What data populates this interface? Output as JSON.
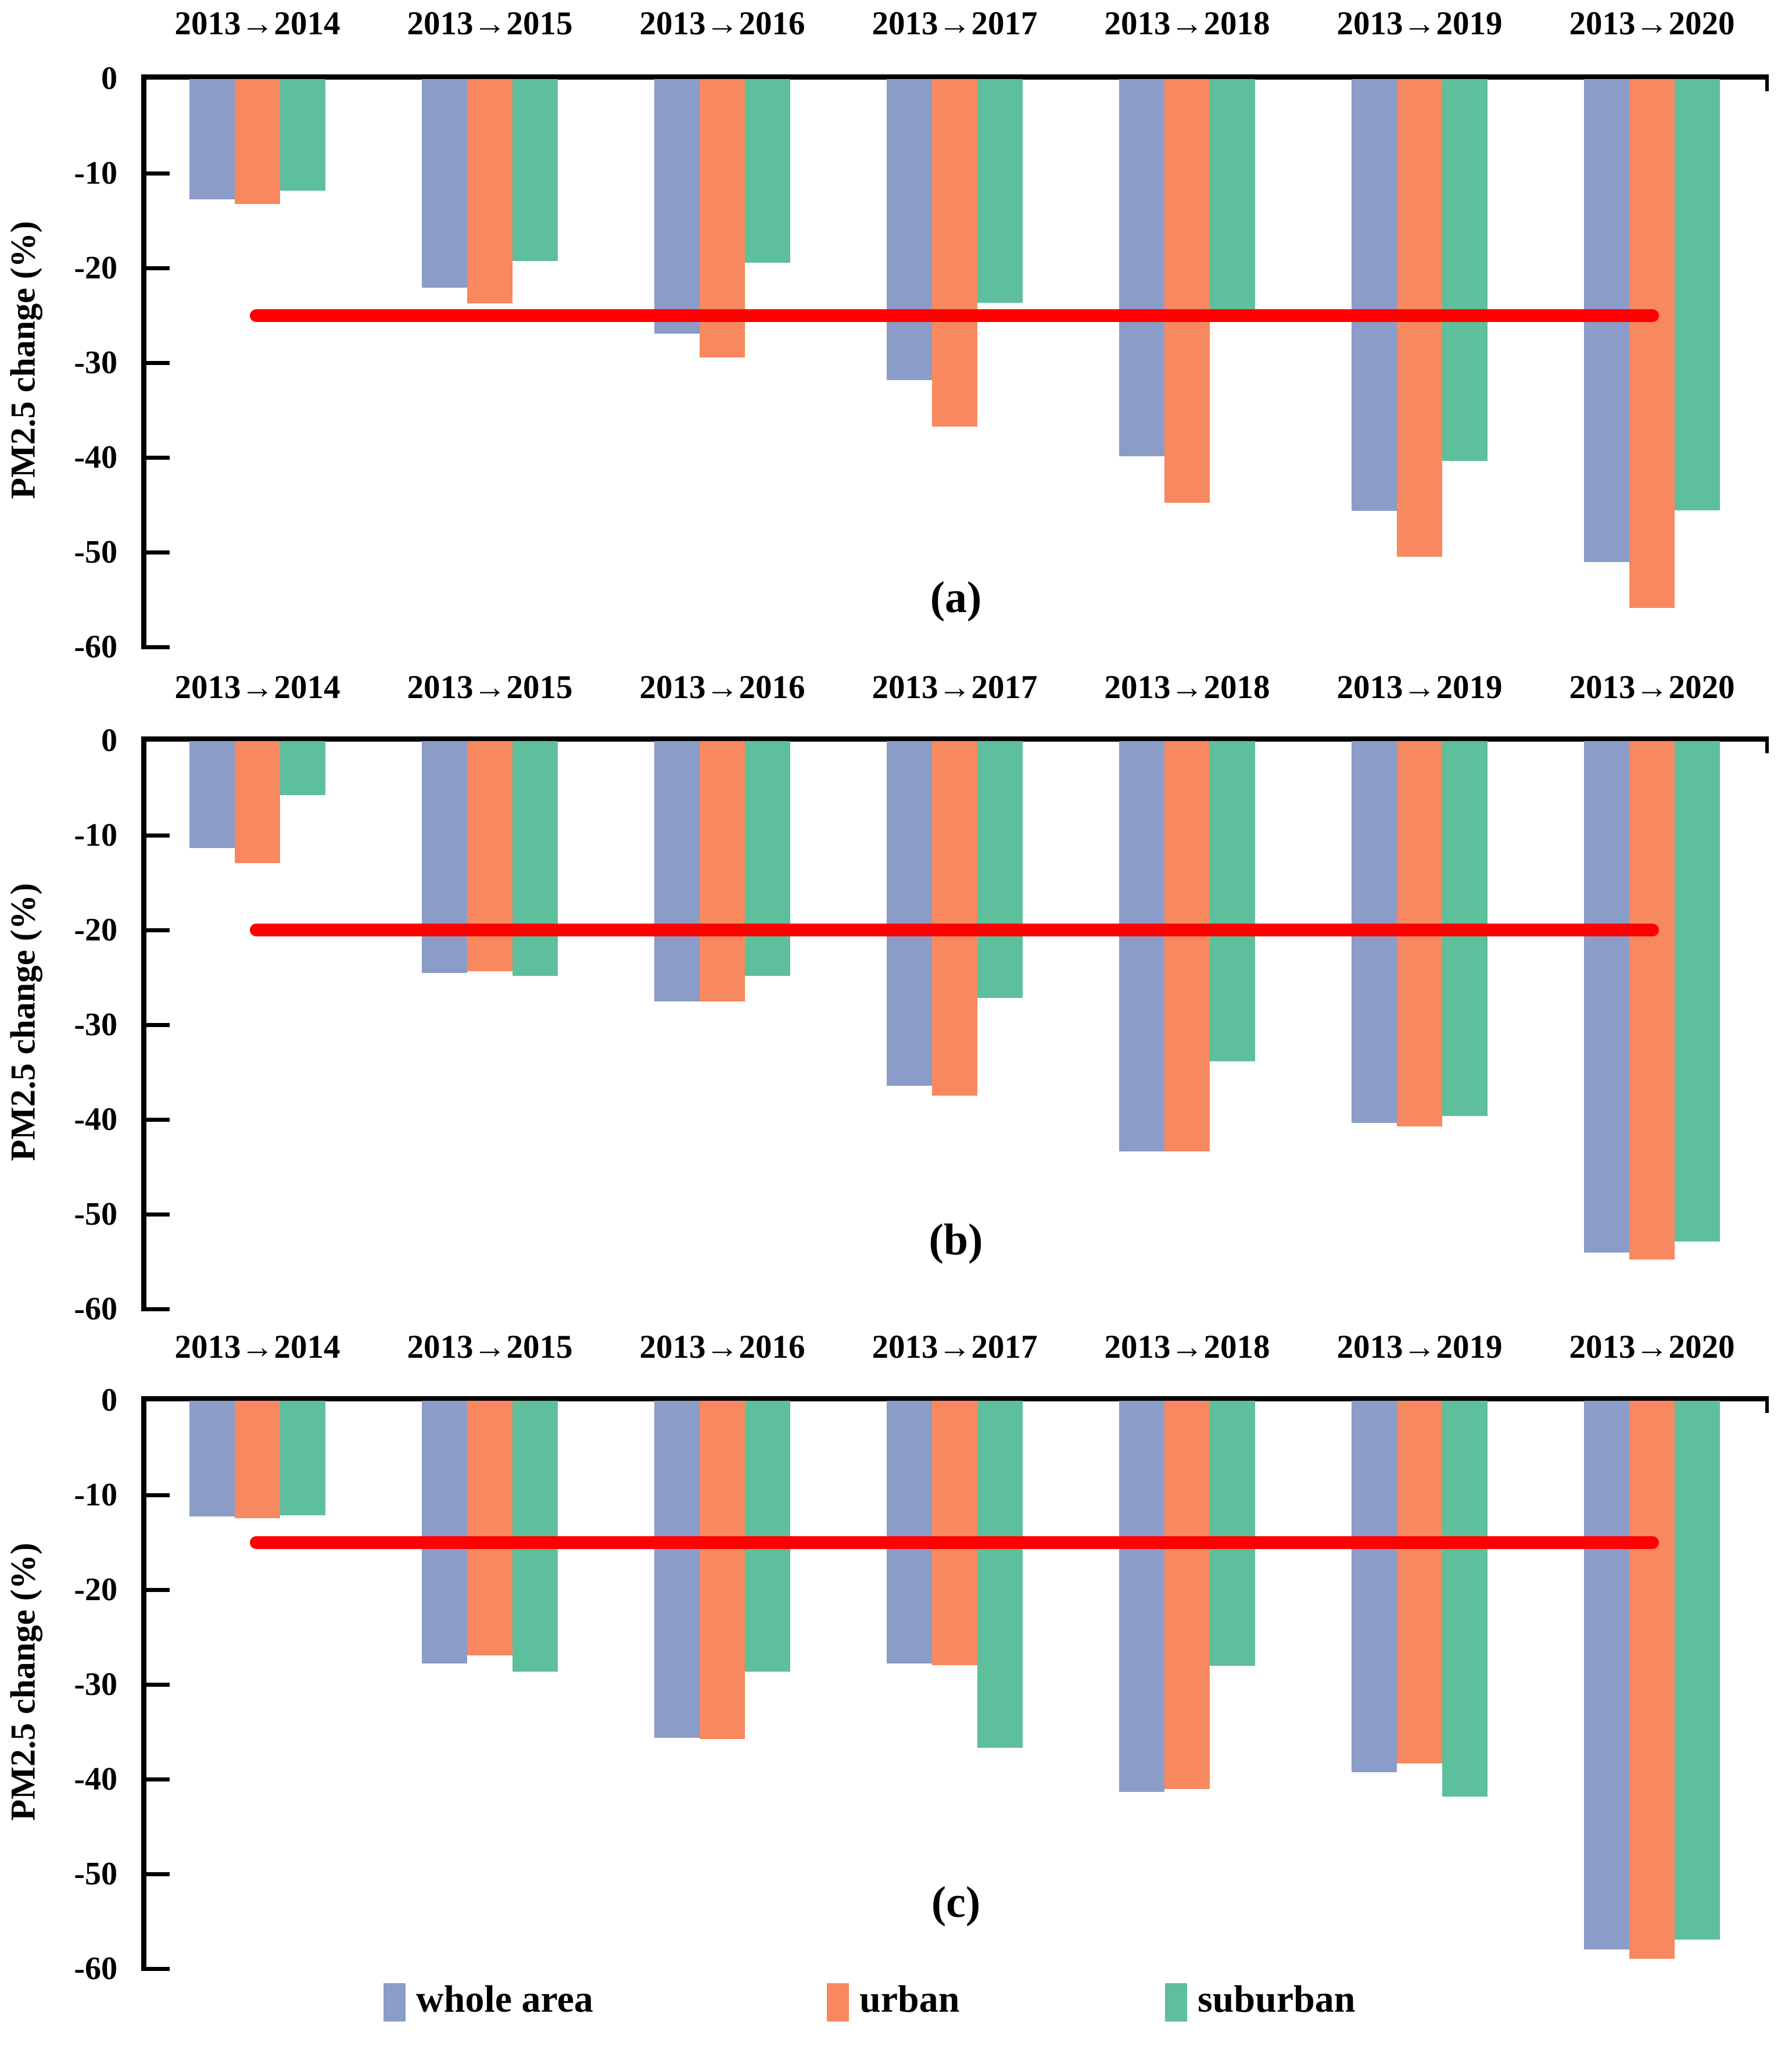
{
  "figure": {
    "ylabel": "PM2.5 change (%)",
    "panel_letters": [
      "(a)",
      "(b)",
      "(c)"
    ]
  },
  "legend": {
    "items": [
      {
        "label": "whole area",
        "color": "#8B9CC8"
      },
      {
        "label": "urban",
        "color": "#F8885F"
      },
      {
        "label": "suburban",
        "color": "#5DBF9B"
      }
    ]
  },
  "colors": {
    "whole_area": "#8B9CC8",
    "urban": "#F8885F",
    "suburban": "#5DBF9B",
    "reference_line": "#FF0000",
    "axis": "#000000"
  },
  "chart_data": [
    {
      "type": "bar",
      "panel": "(a)",
      "title": "",
      "xlabel": "",
      "ylabel": "PM2.5 change (%)",
      "ylim": [
        -60,
        0
      ],
      "yticks": [
        "0",
        "-10",
        "-20",
        "-30",
        "-40",
        "-50",
        "-60"
      ],
      "ytick_values": [
        0,
        -10,
        -20,
        -30,
        -40,
        -50,
        -60
      ],
      "grid": false,
      "reference_line": -25,
      "categories": [
        "2013→2014",
        "2013→2015",
        "2013→2016",
        "2013→2017",
        "2013→2018",
        "2013→2019",
        "2013→2020"
      ],
      "series": [
        {
          "name": "whole area",
          "values": [
            -12.7,
            -22.0,
            -26.9,
            -31.8,
            -39.8,
            -45.6,
            -51.0
          ]
        },
        {
          "name": "urban",
          "values": [
            -13.2,
            -23.7,
            -29.4,
            -36.7,
            -44.7,
            -50.4,
            -55.8
          ]
        },
        {
          "name": "suburban",
          "values": [
            -11.8,
            -19.2,
            -19.4,
            -23.6,
            -24.4,
            -40.3,
            -45.5
          ]
        }
      ]
    },
    {
      "type": "bar",
      "panel": "(b)",
      "title": "",
      "xlabel": "",
      "ylabel": "PM2.5 change (%)",
      "ylim": [
        -60,
        0
      ],
      "yticks": [
        "0",
        "-10",
        "-20",
        "-30",
        "-40",
        "-50",
        "-60"
      ],
      "ytick_values": [
        0,
        -10,
        -20,
        -30,
        -40,
        -50,
        -60
      ],
      "grid": false,
      "reference_line": -20,
      "categories": [
        "2013→2014",
        "2013→2015",
        "2013→2016",
        "2013→2017",
        "2013→2018",
        "2013→2019",
        "2013→2020"
      ],
      "series": [
        {
          "name": "whole area",
          "values": [
            -11.3,
            -24.5,
            -27.5,
            -36.4,
            -43.3,
            -40.3,
            -54.0
          ]
        },
        {
          "name": "urban",
          "values": [
            -12.9,
            -24.3,
            -27.5,
            -37.4,
            -43.3,
            -40.7,
            -54.7
          ]
        },
        {
          "name": "suburban",
          "values": [
            -5.7,
            -24.8,
            -24.8,
            -27.1,
            -33.8,
            -39.6,
            -52.8
          ]
        }
      ]
    },
    {
      "type": "bar",
      "panel": "(c)",
      "title": "",
      "xlabel": "",
      "ylabel": "PM2.5 change (%)",
      "ylim": [
        -60,
        0
      ],
      "yticks": [
        "0",
        "-10",
        "-20",
        "-30",
        "-40",
        "-50",
        "-60"
      ],
      "ytick_values": [
        0,
        -10,
        -20,
        -30,
        -40,
        -50,
        -60
      ],
      "grid": false,
      "reference_line": -15,
      "categories": [
        "2013→2014",
        "2013→2015",
        "2013→2016",
        "2013→2017",
        "2013→2018",
        "2013→2019",
        "2013→2020"
      ],
      "series": [
        {
          "name": "whole area",
          "values": [
            -12.2,
            -27.7,
            -35.6,
            -27.7,
            -41.3,
            -39.2,
            -57.9
          ]
        },
        {
          "name": "urban",
          "values": [
            -12.4,
            -26.9,
            -35.7,
            -27.9,
            -41.0,
            -38.3,
            -58.9
          ]
        },
        {
          "name": "suburban",
          "values": [
            -12.1,
            -28.6,
            -28.6,
            -36.6,
            -28.0,
            -41.8,
            -56.9
          ]
        }
      ]
    }
  ]
}
